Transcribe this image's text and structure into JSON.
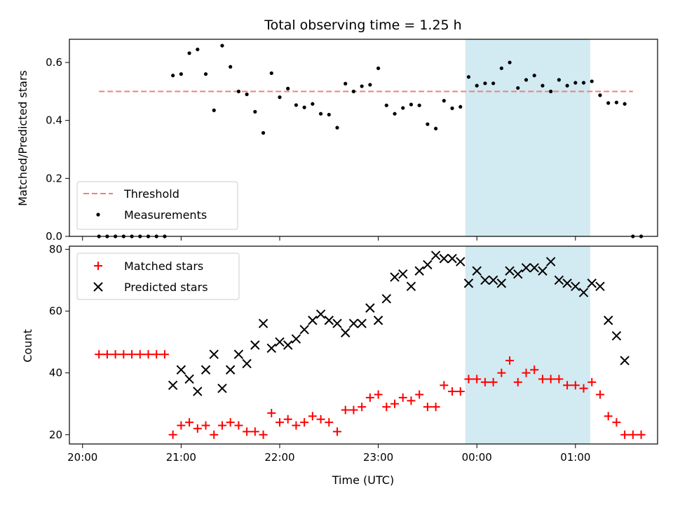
{
  "chart_data": [
    {
      "type": "scatter",
      "title": "Total observing time = 1.25 h",
      "xlabel": "",
      "ylabel": "Matched/Predicted stars",
      "xlim": [
        "19:52",
        "25:50"
      ],
      "ylim": [
        0,
        0.68
      ],
      "x_ticks": [
        "20:00",
        "21:00",
        "22:00",
        "23:00",
        "00:00",
        "01:00"
      ],
      "x_tick_labels_visible": false,
      "y_ticks": [
        0.0,
        0.2,
        0.4,
        0.6
      ],
      "y_tick_labels": [
        "0.0",
        "0.2",
        "0.4",
        "0.6"
      ],
      "shaded_interval": {
        "x0": "23:53",
        "x1": "01:09",
        "color": "#add8e6"
      },
      "threshold": {
        "name": "Threshold",
        "value": 0.5,
        "x_start": "20:10",
        "x_end": "25:35",
        "color": "#f08080",
        "dash": true
      },
      "series": [
        {
          "name": "Measurements",
          "marker": "dot",
          "color": "#000000",
          "points": [
            {
              "x": "20:10",
              "y": 0.0
            },
            {
              "x": "20:15",
              "y": 0.0
            },
            {
              "x": "20:20",
              "y": 0.0
            },
            {
              "x": "20:25",
              "y": 0.0
            },
            {
              "x": "20:30",
              "y": 0.0
            },
            {
              "x": "20:35",
              "y": 0.0
            },
            {
              "x": "20:40",
              "y": 0.0
            },
            {
              "x": "20:45",
              "y": 0.0
            },
            {
              "x": "20:50",
              "y": 0.0
            },
            {
              "x": "20:55",
              "y": 0.555
            },
            {
              "x": "21:00",
              "y": 0.56
            },
            {
              "x": "21:05",
              "y": 0.632
            },
            {
              "x": "21:10",
              "y": 0.645
            },
            {
              "x": "21:15",
              "y": 0.56
            },
            {
              "x": "21:20",
              "y": 0.435
            },
            {
              "x": "21:25",
              "y": 0.658
            },
            {
              "x": "21:30",
              "y": 0.585
            },
            {
              "x": "21:35",
              "y": 0.5
            },
            {
              "x": "21:40",
              "y": 0.49
            },
            {
              "x": "21:45",
              "y": 0.43
            },
            {
              "x": "21:50",
              "y": 0.357
            },
            {
              "x": "21:55",
              "y": 0.563
            },
            {
              "x": "22:00",
              "y": 0.48
            },
            {
              "x": "22:05",
              "y": 0.51
            },
            {
              "x": "22:10",
              "y": 0.453
            },
            {
              "x": "22:15",
              "y": 0.445
            },
            {
              "x": "22:20",
              "y": 0.457
            },
            {
              "x": "22:25",
              "y": 0.423
            },
            {
              "x": "22:30",
              "y": 0.42
            },
            {
              "x": "22:35",
              "y": 0.375
            },
            {
              "x": "22:40",
              "y": 0.527
            },
            {
              "x": "22:45",
              "y": 0.5
            },
            {
              "x": "22:50",
              "y": 0.518
            },
            {
              "x": "22:55",
              "y": 0.523
            },
            {
              "x": "23:00",
              "y": 0.58
            },
            {
              "x": "23:05",
              "y": 0.452
            },
            {
              "x": "23:10",
              "y": 0.423
            },
            {
              "x": "23:15",
              "y": 0.443
            },
            {
              "x": "23:20",
              "y": 0.455
            },
            {
              "x": "23:25",
              "y": 0.452
            },
            {
              "x": "23:30",
              "y": 0.387
            },
            {
              "x": "23:35",
              "y": 0.372
            },
            {
              "x": "23:40",
              "y": 0.468
            },
            {
              "x": "23:45",
              "y": 0.442
            },
            {
              "x": "23:50",
              "y": 0.447
            },
            {
              "x": "23:55",
              "y": 0.55
            },
            {
              "x": "24:00",
              "y": 0.52
            },
            {
              "x": "24:05",
              "y": 0.528
            },
            {
              "x": "24:10",
              "y": 0.528
            },
            {
              "x": "24:15",
              "y": 0.58
            },
            {
              "x": "24:20",
              "y": 0.6
            },
            {
              "x": "24:25",
              "y": 0.512
            },
            {
              "x": "24:30",
              "y": 0.54
            },
            {
              "x": "24:35",
              "y": 0.555
            },
            {
              "x": "24:40",
              "y": 0.52
            },
            {
              "x": "24:45",
              "y": 0.5
            },
            {
              "x": "24:50",
              "y": 0.54
            },
            {
              "x": "24:55",
              "y": 0.52
            },
            {
              "x": "25:00",
              "y": 0.53
            },
            {
              "x": "25:05",
              "y": 0.53
            },
            {
              "x": "25:10",
              "y": 0.535
            },
            {
              "x": "25:15",
              "y": 0.487
            },
            {
              "x": "25:20",
              "y": 0.46
            },
            {
              "x": "25:25",
              "y": 0.462
            },
            {
              "x": "25:30",
              "y": 0.457
            },
            {
              "x": "25:35",
              "y": 0.0
            },
            {
              "x": "25:40",
              "y": 0.0
            }
          ]
        }
      ],
      "legend": {
        "placement": "lower-left",
        "entries": [
          "Threshold",
          "Measurements"
        ]
      }
    },
    {
      "type": "scatter",
      "title": "",
      "xlabel": "Time (UTC)",
      "ylabel": "Count",
      "xlim": [
        "19:52",
        "25:50"
      ],
      "ylim": [
        17,
        81
      ],
      "x_ticks": [
        "20:00",
        "21:00",
        "22:00",
        "23:00",
        "00:00",
        "01:00"
      ],
      "x_tick_labels": [
        "20:00",
        "21:00",
        "22:00",
        "23:00",
        "00:00",
        "01:00"
      ],
      "y_ticks": [
        20,
        40,
        60,
        80
      ],
      "y_tick_labels": [
        "20",
        "40",
        "60",
        "80"
      ],
      "shaded_interval": {
        "x0": "23:53",
        "x1": "01:09",
        "color": "#add8e6"
      },
      "series": [
        {
          "name": "Matched stars",
          "marker": "plus",
          "color": "#ff0000",
          "points": [
            {
              "x": "20:10",
              "y": 46
            },
            {
              "x": "20:15",
              "y": 46
            },
            {
              "x": "20:20",
              "y": 46
            },
            {
              "x": "20:25",
              "y": 46
            },
            {
              "x": "20:30",
              "y": 46
            },
            {
              "x": "20:35",
              "y": 46
            },
            {
              "x": "20:40",
              "y": 46
            },
            {
              "x": "20:45",
              "y": 46
            },
            {
              "x": "20:50",
              "y": 46
            },
            {
              "x": "20:55",
              "y": 20
            },
            {
              "x": "21:00",
              "y": 23
            },
            {
              "x": "21:05",
              "y": 24
            },
            {
              "x": "21:10",
              "y": 22
            },
            {
              "x": "21:15",
              "y": 23
            },
            {
              "x": "21:20",
              "y": 20
            },
            {
              "x": "21:25",
              "y": 23
            },
            {
              "x": "21:30",
              "y": 24
            },
            {
              "x": "21:35",
              "y": 23
            },
            {
              "x": "21:40",
              "y": 21
            },
            {
              "x": "21:45",
              "y": 21
            },
            {
              "x": "21:50",
              "y": 20
            },
            {
              "x": "21:55",
              "y": 27
            },
            {
              "x": "22:00",
              "y": 24
            },
            {
              "x": "22:05",
              "y": 25
            },
            {
              "x": "22:10",
              "y": 23
            },
            {
              "x": "22:15",
              "y": 24
            },
            {
              "x": "22:20",
              "y": 26
            },
            {
              "x": "22:25",
              "y": 25
            },
            {
              "x": "22:30",
              "y": 24
            },
            {
              "x": "22:35",
              "y": 21
            },
            {
              "x": "22:40",
              "y": 28
            },
            {
              "x": "22:45",
              "y": 28
            },
            {
              "x": "22:50",
              "y": 29
            },
            {
              "x": "22:55",
              "y": 32
            },
            {
              "x": "23:00",
              "y": 33
            },
            {
              "x": "23:05",
              "y": 29
            },
            {
              "x": "23:10",
              "y": 30
            },
            {
              "x": "23:15",
              "y": 32
            },
            {
              "x": "23:20",
              "y": 31
            },
            {
              "x": "23:25",
              "y": 33
            },
            {
              "x": "23:30",
              "y": 29
            },
            {
              "x": "23:35",
              "y": 29
            },
            {
              "x": "23:40",
              "y": 36
            },
            {
              "x": "23:45",
              "y": 34
            },
            {
              "x": "23:50",
              "y": 34
            },
            {
              "x": "23:55",
              "y": 38
            },
            {
              "x": "24:00",
              "y": 38
            },
            {
              "x": "24:05",
              "y": 37
            },
            {
              "x": "24:10",
              "y": 37
            },
            {
              "x": "24:15",
              "y": 40
            },
            {
              "x": "24:20",
              "y": 44
            },
            {
              "x": "24:25",
              "y": 37
            },
            {
              "x": "24:30",
              "y": 40
            },
            {
              "x": "24:35",
              "y": 41
            },
            {
              "x": "24:40",
              "y": 38
            },
            {
              "x": "24:45",
              "y": 38
            },
            {
              "x": "24:50",
              "y": 38
            },
            {
              "x": "24:55",
              "y": 36
            },
            {
              "x": "25:00",
              "y": 36
            },
            {
              "x": "25:05",
              "y": 35
            },
            {
              "x": "25:10",
              "y": 37
            },
            {
              "x": "25:15",
              "y": 33
            },
            {
              "x": "25:20",
              "y": 26
            },
            {
              "x": "25:25",
              "y": 24
            },
            {
              "x": "25:30",
              "y": 20
            },
            {
              "x": "25:35",
              "y": 20
            },
            {
              "x": "25:40",
              "y": 20
            }
          ]
        },
        {
          "name": "Predicted stars",
          "marker": "x",
          "color": "#000000",
          "points": [
            {
              "x": "20:55",
              "y": 36
            },
            {
              "x": "21:00",
              "y": 41
            },
            {
              "x": "21:05",
              "y": 38
            },
            {
              "x": "21:10",
              "y": 34
            },
            {
              "x": "21:15",
              "y": 41
            },
            {
              "x": "21:20",
              "y": 46
            },
            {
              "x": "21:25",
              "y": 35
            },
            {
              "x": "21:30",
              "y": 41
            },
            {
              "x": "21:35",
              "y": 46
            },
            {
              "x": "21:40",
              "y": 43
            },
            {
              "x": "21:45",
              "y": 49
            },
            {
              "x": "21:50",
              "y": 56
            },
            {
              "x": "21:55",
              "y": 48
            },
            {
              "x": "22:00",
              "y": 50
            },
            {
              "x": "22:05",
              "y": 49
            },
            {
              "x": "22:10",
              "y": 51
            },
            {
              "x": "22:15",
              "y": 54
            },
            {
              "x": "22:20",
              "y": 57
            },
            {
              "x": "22:25",
              "y": 59
            },
            {
              "x": "22:30",
              "y": 57
            },
            {
              "x": "22:35",
              "y": 56
            },
            {
              "x": "22:40",
              "y": 53
            },
            {
              "x": "22:45",
              "y": 56
            },
            {
              "x": "22:50",
              "y": 56
            },
            {
              "x": "22:55",
              "y": 61
            },
            {
              "x": "23:00",
              "y": 57
            },
            {
              "x": "23:05",
              "y": 64
            },
            {
              "x": "23:10",
              "y": 71
            },
            {
              "x": "23:15",
              "y": 72
            },
            {
              "x": "23:20",
              "y": 68
            },
            {
              "x": "23:25",
              "y": 73
            },
            {
              "x": "23:30",
              "y": 75
            },
            {
              "x": "23:35",
              "y": 78
            },
            {
              "x": "23:40",
              "y": 77
            },
            {
              "x": "23:45",
              "y": 77
            },
            {
              "x": "23:50",
              "y": 76
            },
            {
              "x": "23:55",
              "y": 69
            },
            {
              "x": "24:00",
              "y": 73
            },
            {
              "x": "24:05",
              "y": 70
            },
            {
              "x": "24:10",
              "y": 70
            },
            {
              "x": "24:15",
              "y": 69
            },
            {
              "x": "24:20",
              "y": 73
            },
            {
              "x": "24:25",
              "y": 72
            },
            {
              "x": "24:30",
              "y": 74
            },
            {
              "x": "24:35",
              "y": 74
            },
            {
              "x": "24:40",
              "y": 73
            },
            {
              "x": "24:45",
              "y": 76
            },
            {
              "x": "24:50",
              "y": 70
            },
            {
              "x": "24:55",
              "y": 69
            },
            {
              "x": "25:00",
              "y": 68
            },
            {
              "x": "25:05",
              "y": 66
            },
            {
              "x": "25:10",
              "y": 69
            },
            {
              "x": "25:15",
              "y": 68
            },
            {
              "x": "25:20",
              "y": 57
            },
            {
              "x": "25:25",
              "y": 52
            },
            {
              "x": "25:30",
              "y": 44
            }
          ]
        }
      ],
      "legend": {
        "placement": "upper-left",
        "entries": [
          "Matched stars",
          "Predicted stars"
        ]
      }
    }
  ]
}
